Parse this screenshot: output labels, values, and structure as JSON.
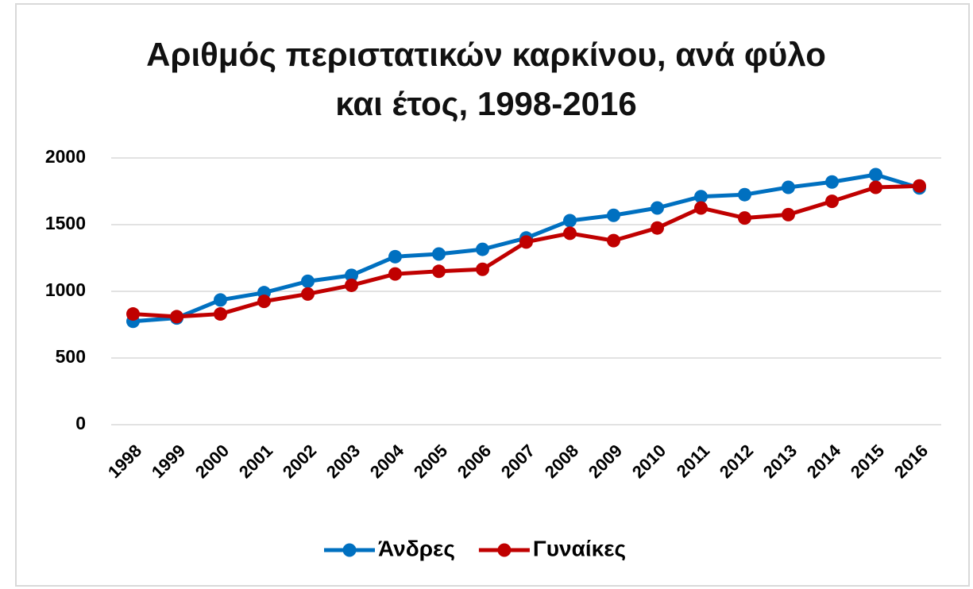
{
  "chart_data": {
    "type": "line",
    "title": "Αριθμός περιστατικών καρκίνου, ανά φύλο και έτος, 1998-2016",
    "categories": [
      "1998",
      "1999",
      "2000",
      "2001",
      "2002",
      "2003",
      "2004",
      "2005",
      "2006",
      "2007",
      "2008",
      "2009",
      "2010",
      "2011",
      "2012",
      "2013",
      "2014",
      "2015",
      "2016"
    ],
    "series": [
      {
        "name": "Άνδρες",
        "color": "#0070c0",
        "values": [
          775,
          800,
          935,
          990,
          1075,
          1120,
          1260,
          1280,
          1315,
          1400,
          1530,
          1570,
          1625,
          1710,
          1725,
          1780,
          1820,
          1875,
          1775
        ]
      },
      {
        "name": "Γυναίκες",
        "color": "#c00000",
        "values": [
          830,
          810,
          830,
          925,
          980,
          1045,
          1130,
          1150,
          1165,
          1370,
          1435,
          1380,
          1475,
          1625,
          1550,
          1575,
          1675,
          1780,
          1790
        ]
      }
    ],
    "ylim": [
      0,
      2000
    ],
    "yticks": [
      0,
      500,
      1000,
      1500,
      2000
    ],
    "grid": true,
    "legend": "bottom"
  }
}
